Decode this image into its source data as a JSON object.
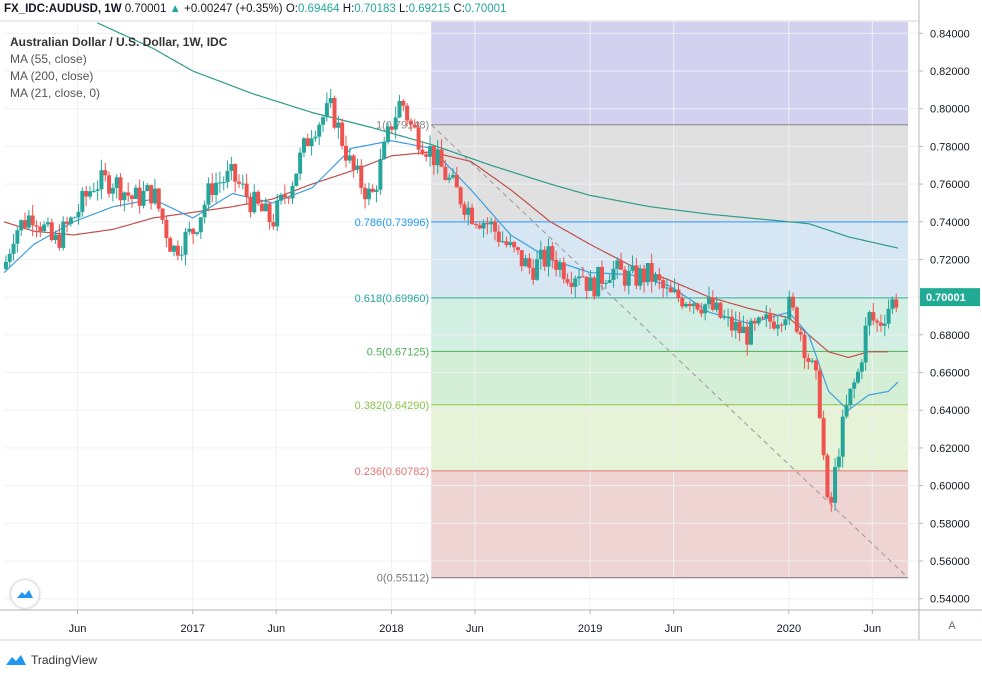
{
  "header": {
    "symbol": "FX_IDC:AUDUSD, 1W",
    "last": "0.70001",
    "arrow": "▲",
    "change": "+0.00247 (+0.35%)",
    "o_label": "O:",
    "o_val": "0.69464",
    "h_label": "H:",
    "h_val": "0.70183",
    "l_label": "L:",
    "l_val": "0.69215",
    "c_label": "C:",
    "c_val": "0.70001"
  },
  "legend": {
    "title": "Australian Dollar / U.S. Dollar, 1W, IDC",
    "ma1": "MA (55, close)",
    "ma2": "MA (200, close)",
    "ma3": "MA (21, close, 0)"
  },
  "footer": {
    "brand": "TradingView"
  },
  "scale_button": "A",
  "colors": {
    "up": "#26a69a",
    "down": "#ef5350",
    "ma55": "#c0504d",
    "ma200": "#2e9c88",
    "ma21": "#3d9ee0",
    "last_label_bg": "#22ab94",
    "trend_line": "#999999"
  },
  "chart_data": {
    "type": "candlestick",
    "title": "Australian Dollar / U.S. Dollar, 1W, IDC",
    "ylim": [
      0.534,
      0.846
    ],
    "y_ticks": [
      "0.84000",
      "0.82000",
      "0.80000",
      "0.78000",
      "0.76000",
      "0.74000",
      "0.72000",
      "0.70000",
      "0.68000",
      "0.66000",
      "0.64000",
      "0.62000",
      "0.60000",
      "0.58000",
      "0.56000",
      "0.54000"
    ],
    "x_ticks": [
      "Jun",
      "2017",
      "Jun",
      "2018",
      "Jun",
      "2019",
      "Jun",
      "2020",
      "Jun"
    ],
    "x_tick_pos": [
      2016.42,
      2017.0,
      2017.42,
      2018.0,
      2018.42,
      2019.0,
      2019.42,
      2020.0,
      2020.42
    ],
    "xlim": [
      2016.05,
      2020.65
    ],
    "last_price": {
      "label": "0.70001",
      "value": 0.70001
    },
    "fibonacci": {
      "x_start": 2018.2,
      "x_end": 2020.6,
      "levels": [
        {
          "label": "1(0.79148)",
          "value": 0.79148,
          "line_color": "#888888",
          "fill": "#e0e0e0"
        },
        {
          "label": "0.786(0.73996)",
          "value": 0.73996,
          "line_color": "#2196f3",
          "fill": "#d6e6f2"
        },
        {
          "label": "0.618(0.69960)",
          "value": 0.6996,
          "line_color": "#26a69a",
          "fill": "#d3efe4"
        },
        {
          "label": "0.5(0.67125)",
          "value": 0.67125,
          "line_color": "#4caf50",
          "fill": "#d5efd6"
        },
        {
          "label": "0.382(0.64290)",
          "value": 0.6429,
          "line_color": "#8bc34a",
          "fill": "#e7f3d6"
        },
        {
          "label": "0.236(0.60782)",
          "value": 0.60782,
          "line_color": "#e57373",
          "fill": "#efd4d4"
        },
        {
          "label": "0(0.55112)",
          "value": 0.55112,
          "line_color": "#777777",
          "fill": null
        }
      ],
      "top_zone_fill": "#d3d1f0",
      "top_zone_value": 0.846
    },
    "trend_line": {
      "x1": 2018.2,
      "y1": 0.7915,
      "x2": 2020.6,
      "y2": 0.5511
    },
    "price_anchors": {
      "x": [
        2016.05,
        2016.1,
        2016.2,
        2016.3,
        2016.4,
        2016.5,
        2016.6,
        2016.7,
        2016.8,
        2016.9,
        2017.0,
        2017.1,
        2017.2,
        2017.3,
        2017.4,
        2017.5,
        2017.6,
        2017.7,
        2017.8,
        2017.9,
        2018.0,
        2018.05,
        2018.1,
        2018.2,
        2018.3,
        2018.4,
        2018.5,
        2018.6,
        2018.7,
        2018.8,
        2018.9,
        2018.95,
        2019.0,
        2019.1,
        2019.2,
        2019.3,
        2019.4,
        2019.5,
        2019.6,
        2019.7,
        2019.8,
        2019.9,
        2020.0,
        2020.05,
        2020.1,
        2020.15,
        2020.2,
        2020.25,
        2020.3,
        2020.35,
        2020.4,
        2020.45,
        2020.5,
        2020.55
      ],
      "close": [
        0.715,
        0.735,
        0.745,
        0.728,
        0.742,
        0.76,
        0.762,
        0.752,
        0.756,
        0.725,
        0.735,
        0.76,
        0.764,
        0.75,
        0.74,
        0.762,
        0.79,
        0.8,
        0.768,
        0.752,
        0.792,
        0.805,
        0.79,
        0.777,
        0.76,
        0.745,
        0.738,
        0.725,
        0.715,
        0.722,
        0.712,
        0.715,
        0.705,
        0.715,
        0.71,
        0.712,
        0.7,
        0.7,
        0.695,
        0.685,
        0.68,
        0.687,
        0.695,
        0.685,
        0.667,
        0.65,
        0.58,
        0.62,
        0.645,
        0.66,
        0.69,
        0.685,
        0.695,
        0.7
      ]
    },
    "ma21_anchors": {
      "x": [
        2016.05,
        2016.2,
        2016.4,
        2016.6,
        2016.8,
        2017.0,
        2017.2,
        2017.4,
        2017.6,
        2017.8,
        2018.0,
        2018.2,
        2018.4,
        2018.6,
        2018.8,
        2019.0,
        2019.2,
        2019.4,
        2019.6,
        2019.8,
        2020.0,
        2020.1,
        2020.2,
        2020.3,
        2020.4,
        2020.5,
        2020.55
      ],
      "value": [
        0.713,
        0.728,
        0.74,
        0.748,
        0.752,
        0.742,
        0.755,
        0.75,
        0.758,
        0.779,
        0.783,
        0.779,
        0.757,
        0.733,
        0.72,
        0.713,
        0.712,
        0.706,
        0.692,
        0.686,
        0.692,
        0.68,
        0.65,
        0.64,
        0.648,
        0.65,
        0.655
      ]
    },
    "ma55_anchors": {
      "x": [
        2016.05,
        2016.2,
        2016.4,
        2016.6,
        2016.8,
        2017.0,
        2017.2,
        2017.4,
        2017.6,
        2017.8,
        2018.0,
        2018.2,
        2018.4,
        2018.6,
        2018.8,
        2019.0,
        2019.2,
        2019.4,
        2019.6,
        2019.8,
        2020.0,
        2020.1,
        2020.2,
        2020.3,
        2020.4,
        2020.5
      ],
      "value": [
        0.74,
        0.735,
        0.733,
        0.736,
        0.742,
        0.745,
        0.748,
        0.752,
        0.76,
        0.767,
        0.775,
        0.777,
        0.772,
        0.757,
        0.74,
        0.728,
        0.717,
        0.709,
        0.7,
        0.694,
        0.689,
        0.68,
        0.671,
        0.668,
        0.671,
        0.671
      ]
    },
    "ma200_anchors": {
      "x": [
        2016.49,
        2016.8,
        2017.0,
        2017.3,
        2017.6,
        2017.9,
        2018.2,
        2018.5,
        2018.8,
        2019.0,
        2019.3,
        2019.6,
        2019.9,
        2020.1,
        2020.3,
        2020.55
      ],
      "value": [
        0.847,
        0.832,
        0.82,
        0.808,
        0.798,
        0.79,
        0.781,
        0.77,
        0.76,
        0.754,
        0.748,
        0.744,
        0.741,
        0.739,
        0.732,
        0.726
      ]
    }
  }
}
